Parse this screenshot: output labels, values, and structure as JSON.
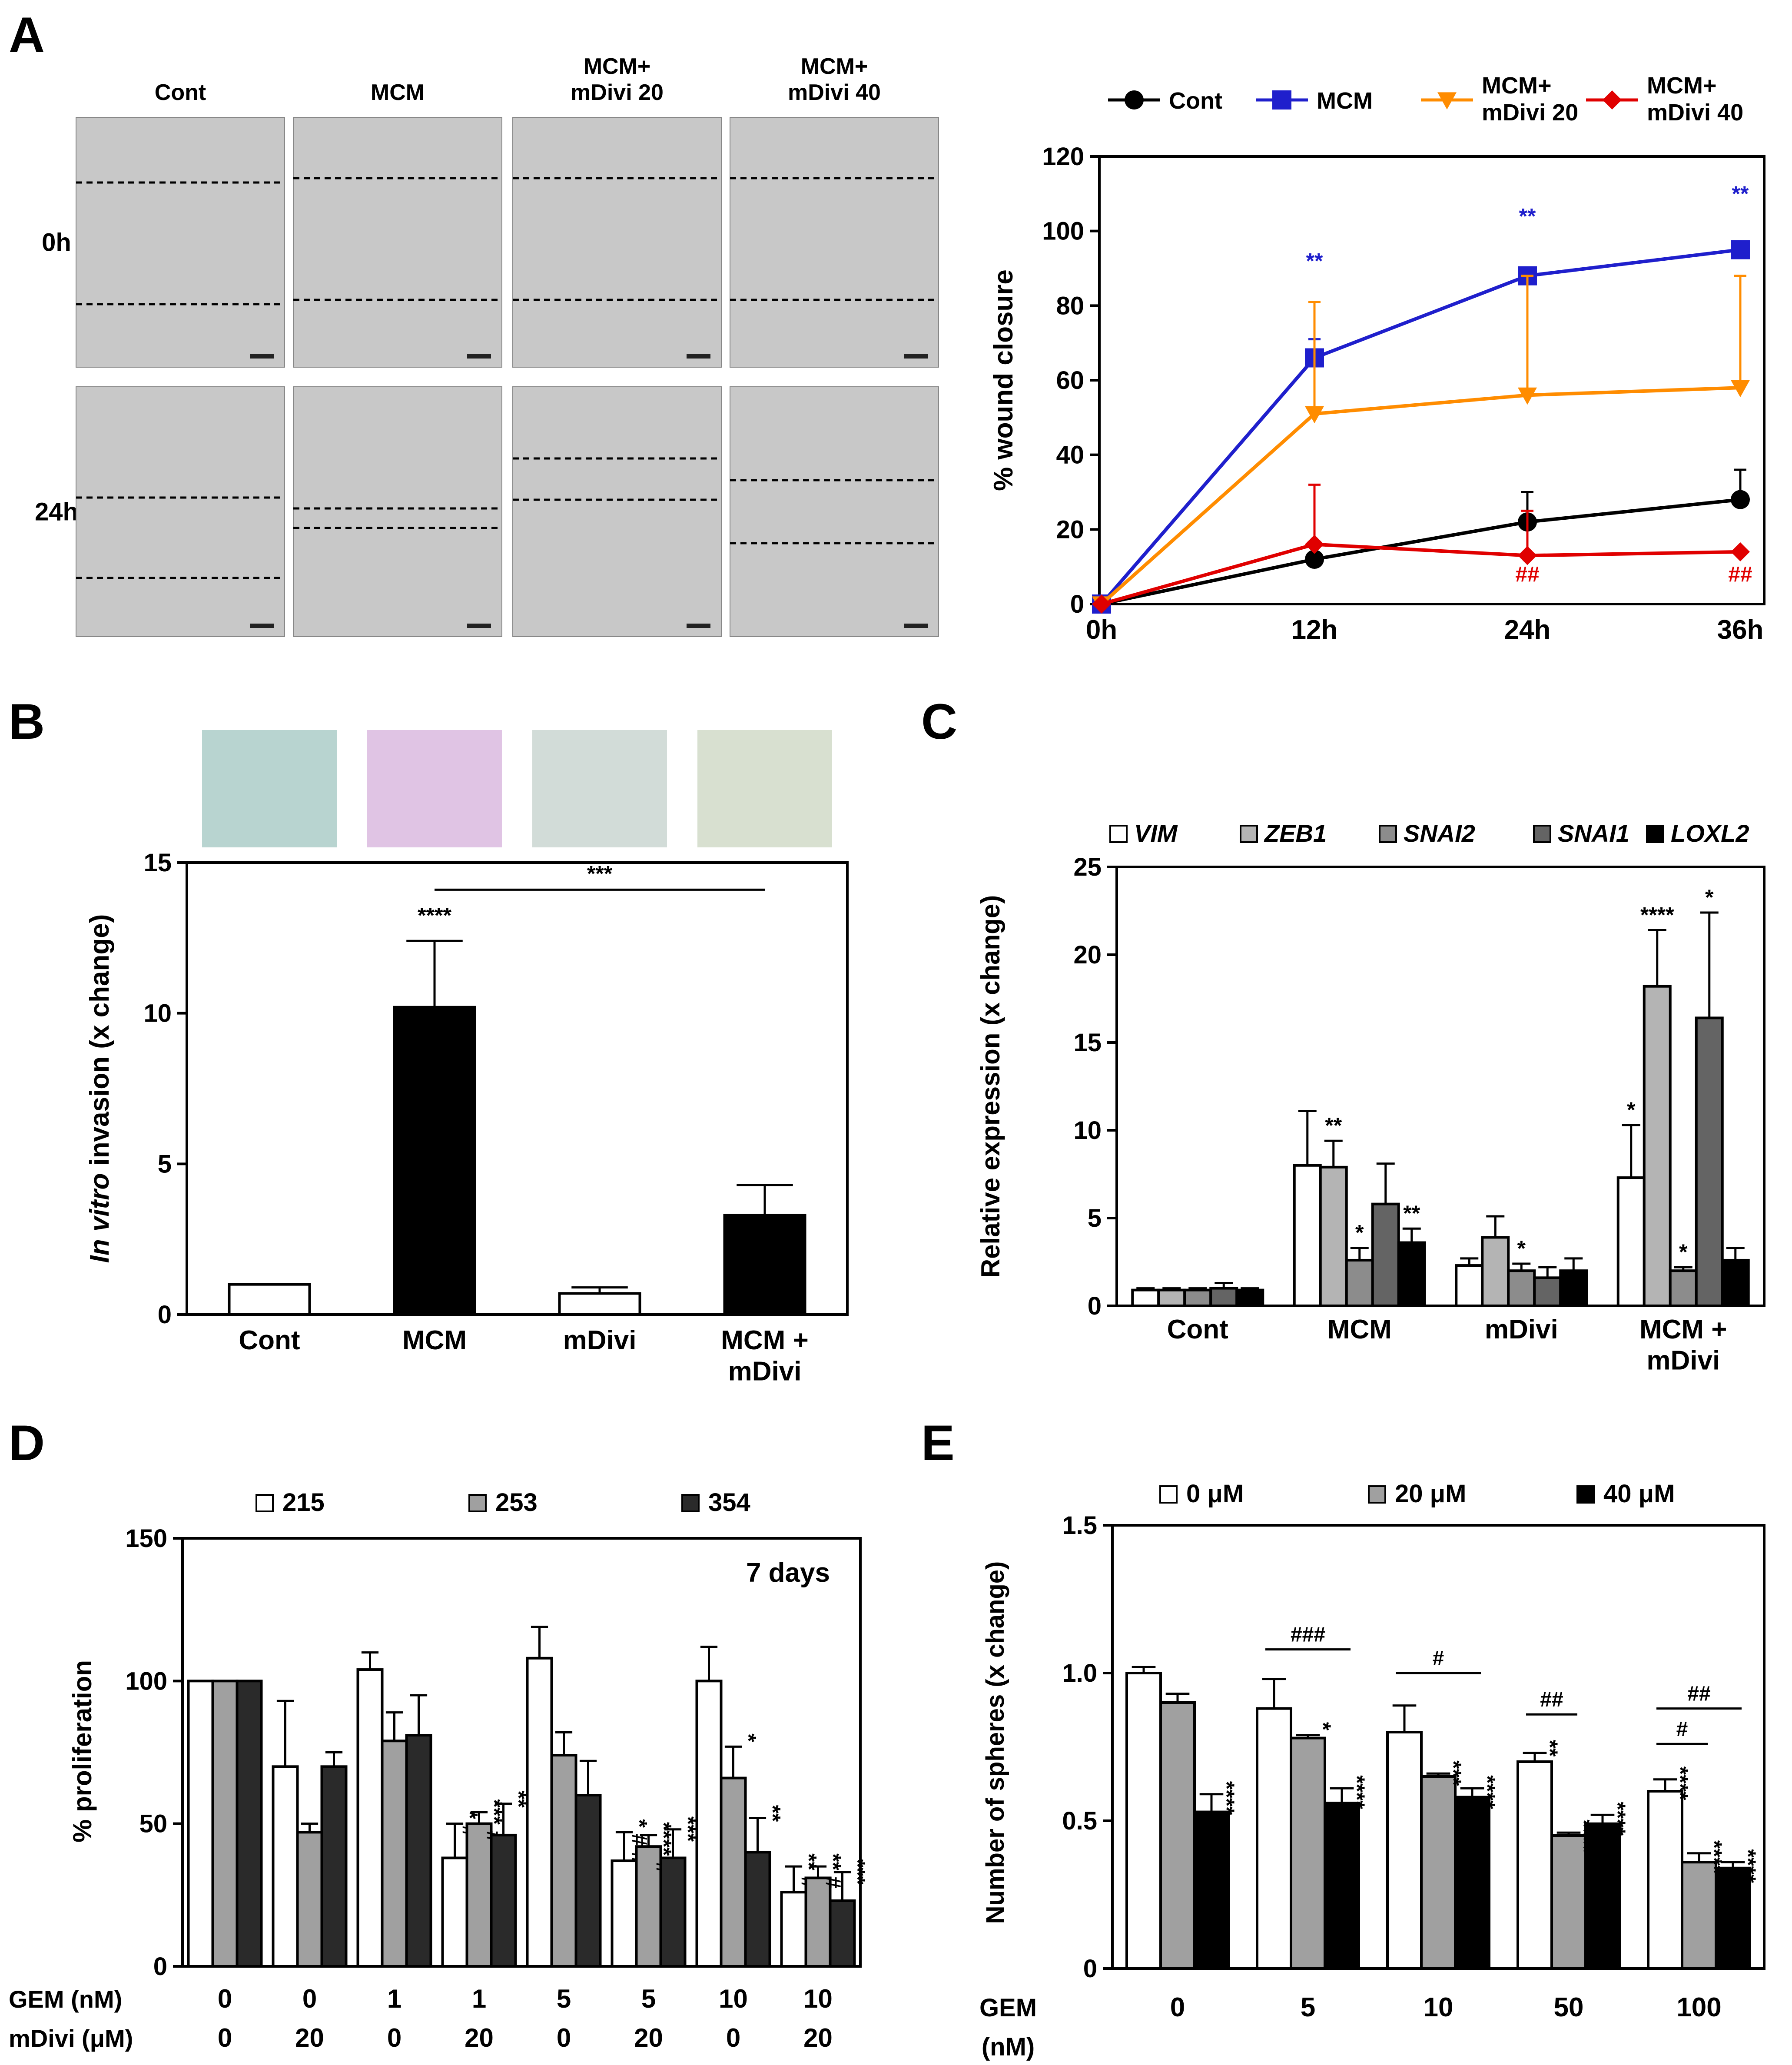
{
  "panel_letters": [
    "A",
    "B",
    "C",
    "D",
    "E"
  ],
  "micrographs": {
    "columns": [
      "Cont",
      "MCM",
      "MCM+\nmDivi 20",
      "MCM+\nmDivi 40"
    ],
    "rows": [
      "0h",
      "24h"
    ],
    "colors": {
      "tile": "#c8c8c8",
      "line": "#000000"
    }
  },
  "chart_data": [
    {
      "id": "A",
      "type": "line",
      "title": "",
      "xlabel": "",
      "ylabel": "% wound closure",
      "ylim": [
        0,
        120
      ],
      "yticks": [
        0,
        20,
        40,
        60,
        80,
        100,
        120
      ],
      "categories": [
        "0h",
        "12h",
        "24h",
        "36h"
      ],
      "series": [
        {
          "name": "Cont",
          "color": "#000000",
          "marker": "circle",
          "values": [
            0,
            12,
            22,
            28
          ],
          "err": [
            0,
            0,
            8,
            8
          ]
        },
        {
          "name": "MCM",
          "color": "#1f1fcc",
          "marker": "square",
          "values": [
            0,
            66,
            88,
            95
          ],
          "err": [
            0,
            5,
            2,
            1
          ]
        },
        {
          "name": "MCM+\nmDivi 20",
          "color": "#ff8c00",
          "marker": "triangle-down",
          "values": [
            0,
            51,
            56,
            58
          ],
          "err": [
            0,
            30,
            32,
            30
          ]
        },
        {
          "name": "MCM+\nmDivi 40",
          "color": "#e00000",
          "marker": "diamond",
          "values": [
            0,
            16,
            13,
            14
          ],
          "err": [
            0,
            16,
            12,
            0
          ]
        }
      ],
      "annotations": [
        {
          "text": "**",
          "cat": 1,
          "y": 90,
          "color": "#1f1fcc"
        },
        {
          "text": "**",
          "cat": 2,
          "y": 102,
          "color": "#1f1fcc"
        },
        {
          "text": "**",
          "cat": 3,
          "y": 108,
          "color": "#1f1fcc"
        },
        {
          "text": "##",
          "cat": 2,
          "y": 6,
          "color": "#e00000"
        },
        {
          "text": "##",
          "cat": 3,
          "y": 6,
          "color": "#e00000"
        }
      ],
      "legend_placement": "top"
    },
    {
      "id": "B",
      "type": "bar",
      "title": "",
      "xlabel": "",
      "ylabel_italic": "In vitro",
      "ylabel_rest": " invasion (x change)",
      "ylim": [
        0,
        15
      ],
      "yticks": [
        0,
        5,
        10,
        15
      ],
      "categories": [
        "Cont",
        "MCM",
        "mDivi",
        "MCM +\nmDivi"
      ],
      "values": [
        1,
        10.2,
        0.7,
        3.3
      ],
      "err": [
        0,
        2.2,
        0.2,
        1.0
      ],
      "colors": [
        "#ffffff",
        "#000000",
        "#ffffff",
        "#000000"
      ],
      "annotations": [
        {
          "text": "****",
          "cat": 1,
          "y": 13.0
        }
      ],
      "bracket": {
        "from": 1,
        "to": 3,
        "y": 14.1,
        "text": "***"
      }
    },
    {
      "id": "C",
      "type": "bar",
      "title": "",
      "xlabel": "",
      "ylabel": "Relative expression (x change)",
      "ylim": [
        0,
        25
      ],
      "yticks": [
        0,
        5,
        10,
        15,
        20,
        25
      ],
      "categories": [
        "Cont",
        "MCM",
        "mDivi",
        "MCM +\nmDivi"
      ],
      "series": [
        {
          "name": "VIM",
          "color": "#ffffff",
          "values": [
            0.9,
            8.0,
            2.3,
            7.3
          ],
          "err": [
            0.1,
            3.1,
            0.4,
            3.0
          ],
          "stars": [
            "",
            "",
            "",
            "*"
          ]
        },
        {
          "name": "ZEB1",
          "color": "#b4b4b4",
          "values": [
            0.9,
            7.9,
            3.9,
            18.2
          ],
          "err": [
            0.1,
            1.5,
            1.2,
            3.2
          ],
          "stars": [
            "",
            "**",
            "",
            "****"
          ]
        },
        {
          "name": "SNAI2",
          "color": "#8c8c8c",
          "values": [
            0.9,
            2.6,
            2.0,
            2.0
          ],
          "err": [
            0.1,
            0.7,
            0.4,
            0.2
          ],
          "stars": [
            "",
            "*",
            "*",
            "*"
          ]
        },
        {
          "name": "SNAI1",
          "color": "#646464",
          "values": [
            1.0,
            5.8,
            1.6,
            16.4
          ],
          "err": [
            0.3,
            2.3,
            0.6,
            6.0
          ],
          "stars": [
            "",
            "",
            "",
            "*"
          ]
        },
        {
          "name": "LOXL2",
          "color": "#000000",
          "values": [
            0.9,
            3.6,
            2.0,
            2.6
          ],
          "err": [
            0.1,
            0.8,
            0.7,
            0.7
          ],
          "stars": [
            "",
            "**",
            "",
            ""
          ]
        }
      ],
      "legend_placement": "top"
    },
    {
      "id": "D",
      "type": "bar",
      "title": "",
      "xlabel": "",
      "ylabel": "% proliferation",
      "ylim": [
        0,
        150
      ],
      "yticks": [
        0,
        50,
        100,
        150
      ],
      "inset_text": "7 days",
      "row_labels": [
        "GEM (nM)",
        "mDivi (μM)"
      ],
      "categories": [
        [
          "0",
          "0"
        ],
        [
          "0",
          "20"
        ],
        [
          "1",
          "0"
        ],
        [
          "1",
          "20"
        ],
        [
          "5",
          "0"
        ],
        [
          "5",
          "20"
        ],
        [
          "10",
          "0"
        ],
        [
          "10",
          "20"
        ]
      ],
      "series": [
        {
          "name": "215",
          "color": "#ffffff",
          "values": [
            100,
            70,
            104,
            38,
            108,
            37,
            100,
            26
          ],
          "err": [
            0,
            23,
            6,
            12,
            11,
            10,
            12,
            9
          ],
          "stars": [
            "",
            "",
            "",
            "* #",
            "",
            "* # #",
            "",
            "** #"
          ]
        },
        {
          "name": "253",
          "color": "#a0a0a0",
          "values": [
            100,
            47,
            79,
            50,
            74,
            42,
            66,
            31
          ],
          "err": [
            0,
            3,
            10,
            4,
            8,
            4,
            11,
            4
          ],
          "stars": [
            "",
            "****",
            "",
            "*** #",
            "",
            "**** #",
            "*",
            "** #"
          ]
        },
        {
          "name": "354",
          "color": "#2a2a2a",
          "values": [
            100,
            70,
            81,
            46,
            60,
            38,
            40,
            23
          ],
          "err": [
            0,
            5,
            14,
            11,
            12,
            10,
            12,
            10
          ],
          "stars": [
            "",
            "",
            "",
            "**",
            "",
            "***",
            "**",
            "***"
          ]
        }
      ],
      "legend_placement": "top"
    },
    {
      "id": "E",
      "type": "bar",
      "title": "",
      "xlabel": "",
      "ylabel": "Number of spheres (x change)",
      "ylim": [
        0,
        1.5
      ],
      "yticks": [
        "0",
        "0.5",
        "1.0",
        "1.5"
      ],
      "xrow_label": [
        "GEM",
        "(nM)"
      ],
      "categories": [
        "0",
        "5",
        "10",
        "50",
        "100"
      ],
      "series": [
        {
          "name": "0 μM",
          "color": "#ffffff",
          "values": [
            1.0,
            0.88,
            0.8,
            0.7,
            0.6
          ],
          "err": [
            0.02,
            0.1,
            0.09,
            0.03,
            0.04
          ],
          "stars": [
            "",
            "",
            "",
            "**",
            "****"
          ]
        },
        {
          "name": "20 μM",
          "color": "#a0a0a0",
          "values": [
            0.9,
            0.78,
            0.65,
            0.45,
            0.36
          ],
          "err": [
            0.03,
            0.01,
            0.01,
            0.01,
            0.03
          ],
          "stars": [
            "",
            "*",
            "***",
            "****",
            "****"
          ]
        },
        {
          "name": "40 μM",
          "color": "#000000",
          "values": [
            0.53,
            0.56,
            0.58,
            0.49,
            0.34
          ],
          "err": [
            0.06,
            0.05,
            0.03,
            0.03,
            0.02
          ],
          "stars": [
            "****",
            "****",
            "****",
            "****",
            "****"
          ]
        }
      ],
      "brackets": [
        {
          "cat": 1,
          "from": 0,
          "to": 2,
          "y": 1.08,
          "text": "###"
        },
        {
          "cat": 2,
          "from": 0,
          "to": 2,
          "y": 1.0,
          "text": "#"
        },
        {
          "cat": 3,
          "from": 0,
          "to": 1,
          "y": 0.86,
          "text": "##"
        },
        {
          "cat": 4,
          "from": 0,
          "to": 1,
          "y": 0.76,
          "text": "#"
        },
        {
          "cat": 4,
          "from": 0,
          "to": 2,
          "y": 0.88,
          "text": "##"
        }
      ],
      "legend_placement": "top"
    }
  ]
}
